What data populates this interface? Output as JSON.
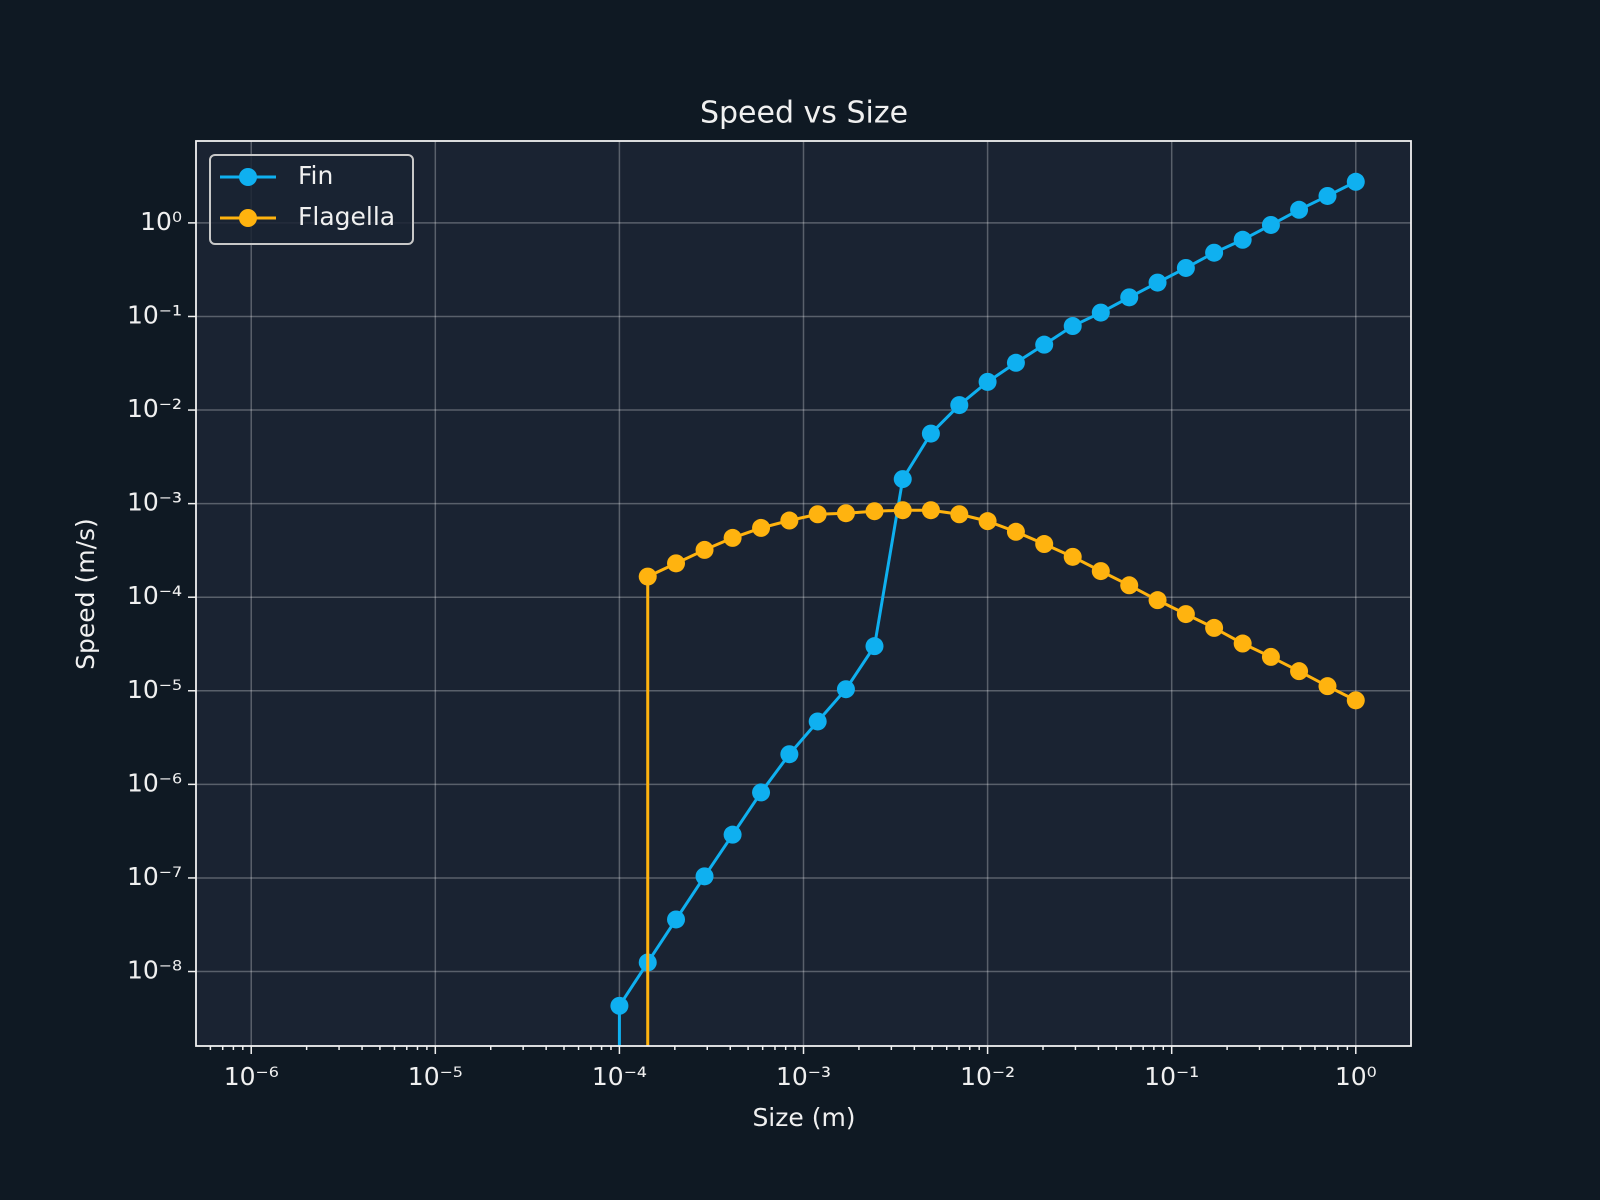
{
  "chart_data": {
    "type": "line",
    "title": "Speed vs Size",
    "x_label": "Size (m)",
    "y_label": "Speed (m/s)",
    "xscale": "log",
    "yscale": "log",
    "grid": true,
    "legend": "upper left",
    "marker": "o",
    "x": [
      0.0001,
      0.0001425,
      0.000203,
      0.00029,
      0.000412,
      0.000588,
      0.000838,
      0.001194,
      0.0017,
      0.00243,
      0.00346,
      0.00492,
      0.00702,
      0.01,
      0.01425,
      0.0203,
      0.029,
      0.0412,
      0.0588,
      0.0838,
      0.1194,
      0.17,
      0.243,
      0.346,
      0.492,
      0.702,
      1
    ],
    "series": [
      {
        "name": "Fin",
        "color": "#0fb0f0",
        "values": [
          4.3e-09,
          1.25e-08,
          3.6e-08,
          1.04e-07,
          2.9e-07,
          8.2e-07,
          2.1e-06,
          4.7e-06,
          1.04e-05,
          3e-05,
          0.00183,
          0.0056,
          0.0113,
          0.02,
          0.032,
          0.05,
          0.079,
          0.11,
          0.16,
          0.23,
          0.33,
          0.48,
          0.66,
          0.95,
          1.38,
          1.94,
          2.75
        ]
      },
      {
        "name": "Flagella",
        "color": "#ffb30f",
        "values": [
          null,
          0.000166,
          0.00023,
          0.00032,
          0.00043,
          0.00055,
          0.00066,
          0.00077,
          0.00079,
          0.00083,
          0.00085,
          0.00085,
          0.00077,
          0.00065,
          0.0005,
          0.00037,
          0.00027,
          0.00019,
          0.000134,
          9.3e-05,
          6.6e-05,
          4.7e-05,
          3.2e-05,
          2.3e-05,
          1.62e-05,
          1.12e-05,
          7.9e-06
        ]
      }
    ],
    "xlim": [
      5.012e-07,
      1.995
    ],
    "ylim": [
      1.6e-09,
      7.5
    ],
    "xticks": [
      {
        "value": 1e-06,
        "label": "10⁻⁶"
      },
      {
        "value": 1e-05,
        "label": "10⁻⁵"
      },
      {
        "value": 0.0001,
        "label": "10⁻⁴"
      },
      {
        "value": 0.001,
        "label": "10⁻³"
      },
      {
        "value": 0.01,
        "label": "10⁻²"
      },
      {
        "value": 0.1,
        "label": "10⁻¹"
      },
      {
        "value": 1,
        "label": "10⁰"
      }
    ],
    "yticks": [
      {
        "value": 1e-08,
        "label": "10⁻⁸"
      },
      {
        "value": 1e-07,
        "label": "10⁻⁷"
      },
      {
        "value": 1e-06,
        "label": "10⁻⁶"
      },
      {
        "value": 1e-05,
        "label": "10⁻⁵"
      },
      {
        "value": 0.0001,
        "label": "10⁻⁴"
      },
      {
        "value": 0.001,
        "label": "10⁻³"
      },
      {
        "value": 0.01,
        "label": "10⁻²"
      },
      {
        "value": 0.1,
        "label": "10⁻¹"
      },
      {
        "value": 1,
        "label": "10⁰"
      }
    ]
  }
}
